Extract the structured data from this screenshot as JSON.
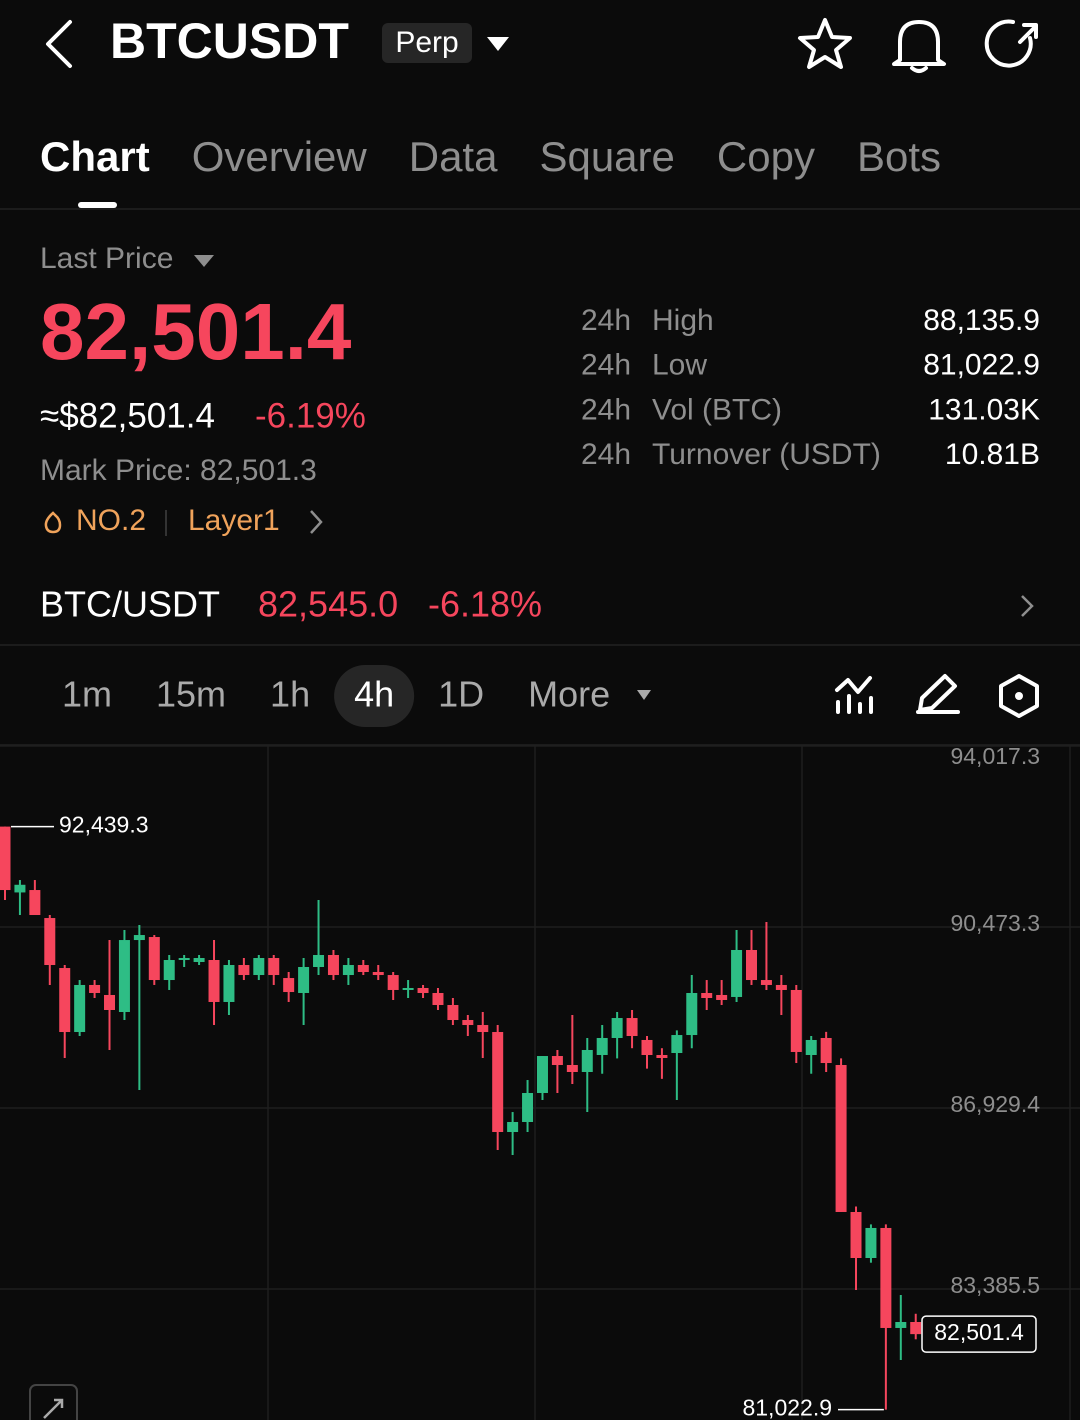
{
  "header": {
    "symbol": "BTCUSDT",
    "badge": "Perp"
  },
  "tabs": [
    "Chart",
    "Overview",
    "Data",
    "Square",
    "Copy",
    "Bots"
  ],
  "active_tab": 0,
  "price": {
    "label": "Last Price",
    "last": "82,501.4",
    "usd": "≈$82,501.4",
    "change": "-6.19%",
    "mark_price": "Mark Price: 82,501.3",
    "rank": "NO.2",
    "tag": "Layer1"
  },
  "stats": [
    {
      "period": "24h",
      "label": "High",
      "value": "88,135.9"
    },
    {
      "period": "24h",
      "label": "Low",
      "value": "81,022.9"
    },
    {
      "period": "24h",
      "label": "Vol (BTC)",
      "value": "131.03K"
    },
    {
      "period": "24h",
      "label": "Turnover (USDT)",
      "value": "10.81B"
    }
  ],
  "spot": {
    "pair": "BTC/USDT",
    "price": "82,545.0",
    "change": "-6.18%"
  },
  "intervals": [
    "1m",
    "15m",
    "1h",
    "4h",
    "1D",
    "More"
  ],
  "active_interval": 3,
  "chart_data": {
    "type": "candlestick",
    "up_color": "#2ebd85",
    "down_color": "#f6465d",
    "open": [
      92439.3,
      91150,
      91197,
      90649,
      89670,
      88417,
      89338,
      89142,
      88809,
      90218,
      90277,
      89435,
      89827,
      89788,
      89827,
      89005,
      89729,
      89533,
      89866,
      89474,
      89181,
      89690,
      89925,
      89533,
      89729,
      89592,
      89533,
      89240,
      89279,
      89181,
      88946,
      88652,
      88554,
      88417,
      86459,
      86655,
      87223,
      87947,
      87771,
      87634,
      87967,
      88300,
      88691,
      88261,
      87967,
      88006,
      88358,
      89181,
      89142,
      89103,
      90023,
      89435,
      89338,
      89240,
      87967,
      88300,
      87771,
      84893,
      83992,
      84580,
      82622,
      82739
    ],
    "high": [
      92439.3,
      91393,
      91393,
      90708,
      89729,
      89435,
      89435,
      90218,
      90414,
      90512,
      90316,
      89925,
      89925,
      89925,
      90218,
      89827,
      89866,
      89925,
      89925,
      89592,
      89866,
      91002,
      90023,
      89866,
      89827,
      89729,
      89592,
      89435,
      89338,
      89279,
      89083,
      88750,
      88809,
      88554,
      86850,
      87477,
      87947,
      88065,
      88750,
      88300,
      88554,
      88809,
      88848,
      88339,
      88100,
      88450,
      89533,
      89435,
      89435,
      90414,
      90414,
      90571,
      89533,
      89338,
      88339,
      88420,
      87900,
      85000,
      84650,
      84650,
      83268,
      82900
    ],
    "low": [
      91002,
      90708,
      90708,
      89338,
      87908,
      88339,
      89083,
      88065,
      88652,
      87281,
      89338,
      89240,
      89690,
      89729,
      88554,
      88750,
      89435,
      89435,
      89338,
      89005,
      88554,
      89533,
      89435,
      89338,
      89533,
      89435,
      89044,
      89083,
      89083,
      88848,
      88554,
      88339,
      87908,
      86107,
      86009,
      86459,
      87086,
      87223,
      87400,
      86850,
      87600,
      87900,
      88100,
      87700,
      87500,
      87086,
      88100,
      88848,
      88946,
      89005,
      89338,
      89240,
      88750,
      87810,
      87600,
      87634,
      84893,
      83366,
      83900,
      81022.9,
      81995,
      82400
    ],
    "close": [
      91197,
      91300,
      90708,
      89729,
      88417,
      89338,
      89181,
      88848,
      90218,
      90316,
      89435,
      89827,
      89866,
      89866,
      89005,
      89729,
      89533,
      89866,
      89533,
      89200,
      89690,
      89925,
      89533,
      89729,
      89592,
      89533,
      89240,
      89279,
      89181,
      88946,
      88652,
      88554,
      88417,
      86459,
      86655,
      87223,
      87947,
      87771,
      87634,
      88065,
      88300,
      88691,
      88339,
      87967,
      87908,
      88358,
      89181,
      89083,
      89044,
      90023,
      89435,
      89338,
      89240,
      88026,
      88261,
      87810,
      84893,
      83992,
      84580,
      82622,
      82739,
      82501.4
    ],
    "ylim": [
      80820,
      94017.3
    ],
    "yticks": [
      {
        "value": 94017.3,
        "label": "94,017.3"
      },
      {
        "value": 90473.3,
        "label": "90,473.3"
      },
      {
        "value": 86929.4,
        "label": "86,929.4"
      },
      {
        "value": 83385.5,
        "label": "83,385.5"
      }
    ],
    "grid": true,
    "high_marker": {
      "value": 92439.3,
      "label": "92,439.3"
    },
    "low_marker": {
      "value": 81022.9,
      "label": "81,022.9"
    },
    "last_marker": {
      "value": 82501.4,
      "label": "82,501.4"
    }
  }
}
